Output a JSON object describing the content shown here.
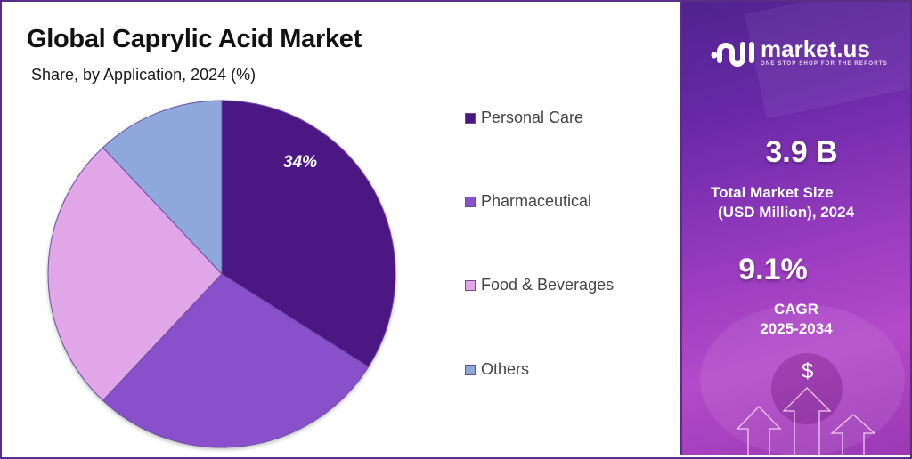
{
  "header": {
    "title": "Global Caprylic Acid Market",
    "subtitle": "Share, by Application, 2024 (%)"
  },
  "chart_data": {
    "type": "pie",
    "title": "Global Caprylic Acid Market",
    "subtitle": "Share, by Application, 2024 (%)",
    "categories": [
      "Personal Care",
      "Pharmaceutical",
      "Food & Beverages",
      "Others"
    ],
    "values": [
      34,
      28,
      26,
      12
    ],
    "colors": [
      "#4b1782",
      "#8a4fcb",
      "#e0a6e8",
      "#8fa8dc"
    ],
    "data_labels": [
      {
        "category": "Personal Care",
        "text": "34%"
      }
    ],
    "start_angle": "12 o'clock, clockwise",
    "legend_position": "right"
  },
  "pie": {
    "label_personal_care": "34%"
  },
  "legend": {
    "items": [
      {
        "label": "Personal Care",
        "color": "#4b1782"
      },
      {
        "label": "Pharmaceutical",
        "color": "#8a4fcb"
      },
      {
        "label": "Food & Beverages",
        "color": "#e0a6e8"
      },
      {
        "label": "Others",
        "color": "#8fa8dc"
      }
    ]
  },
  "sidebar": {
    "brand_name": "market.us",
    "brand_tagline": "ONE STOP SHOP FOR THE REPORTS",
    "market_size_value": "3.9 B",
    "market_size_label_1": "Total Market Size",
    "market_size_label_2": "(USD Million), 2024",
    "cagr_value": "9.1%",
    "cagr_label_1": "CAGR",
    "cagr_label_2": "2025-2034",
    "dollar_symbol": "$"
  }
}
